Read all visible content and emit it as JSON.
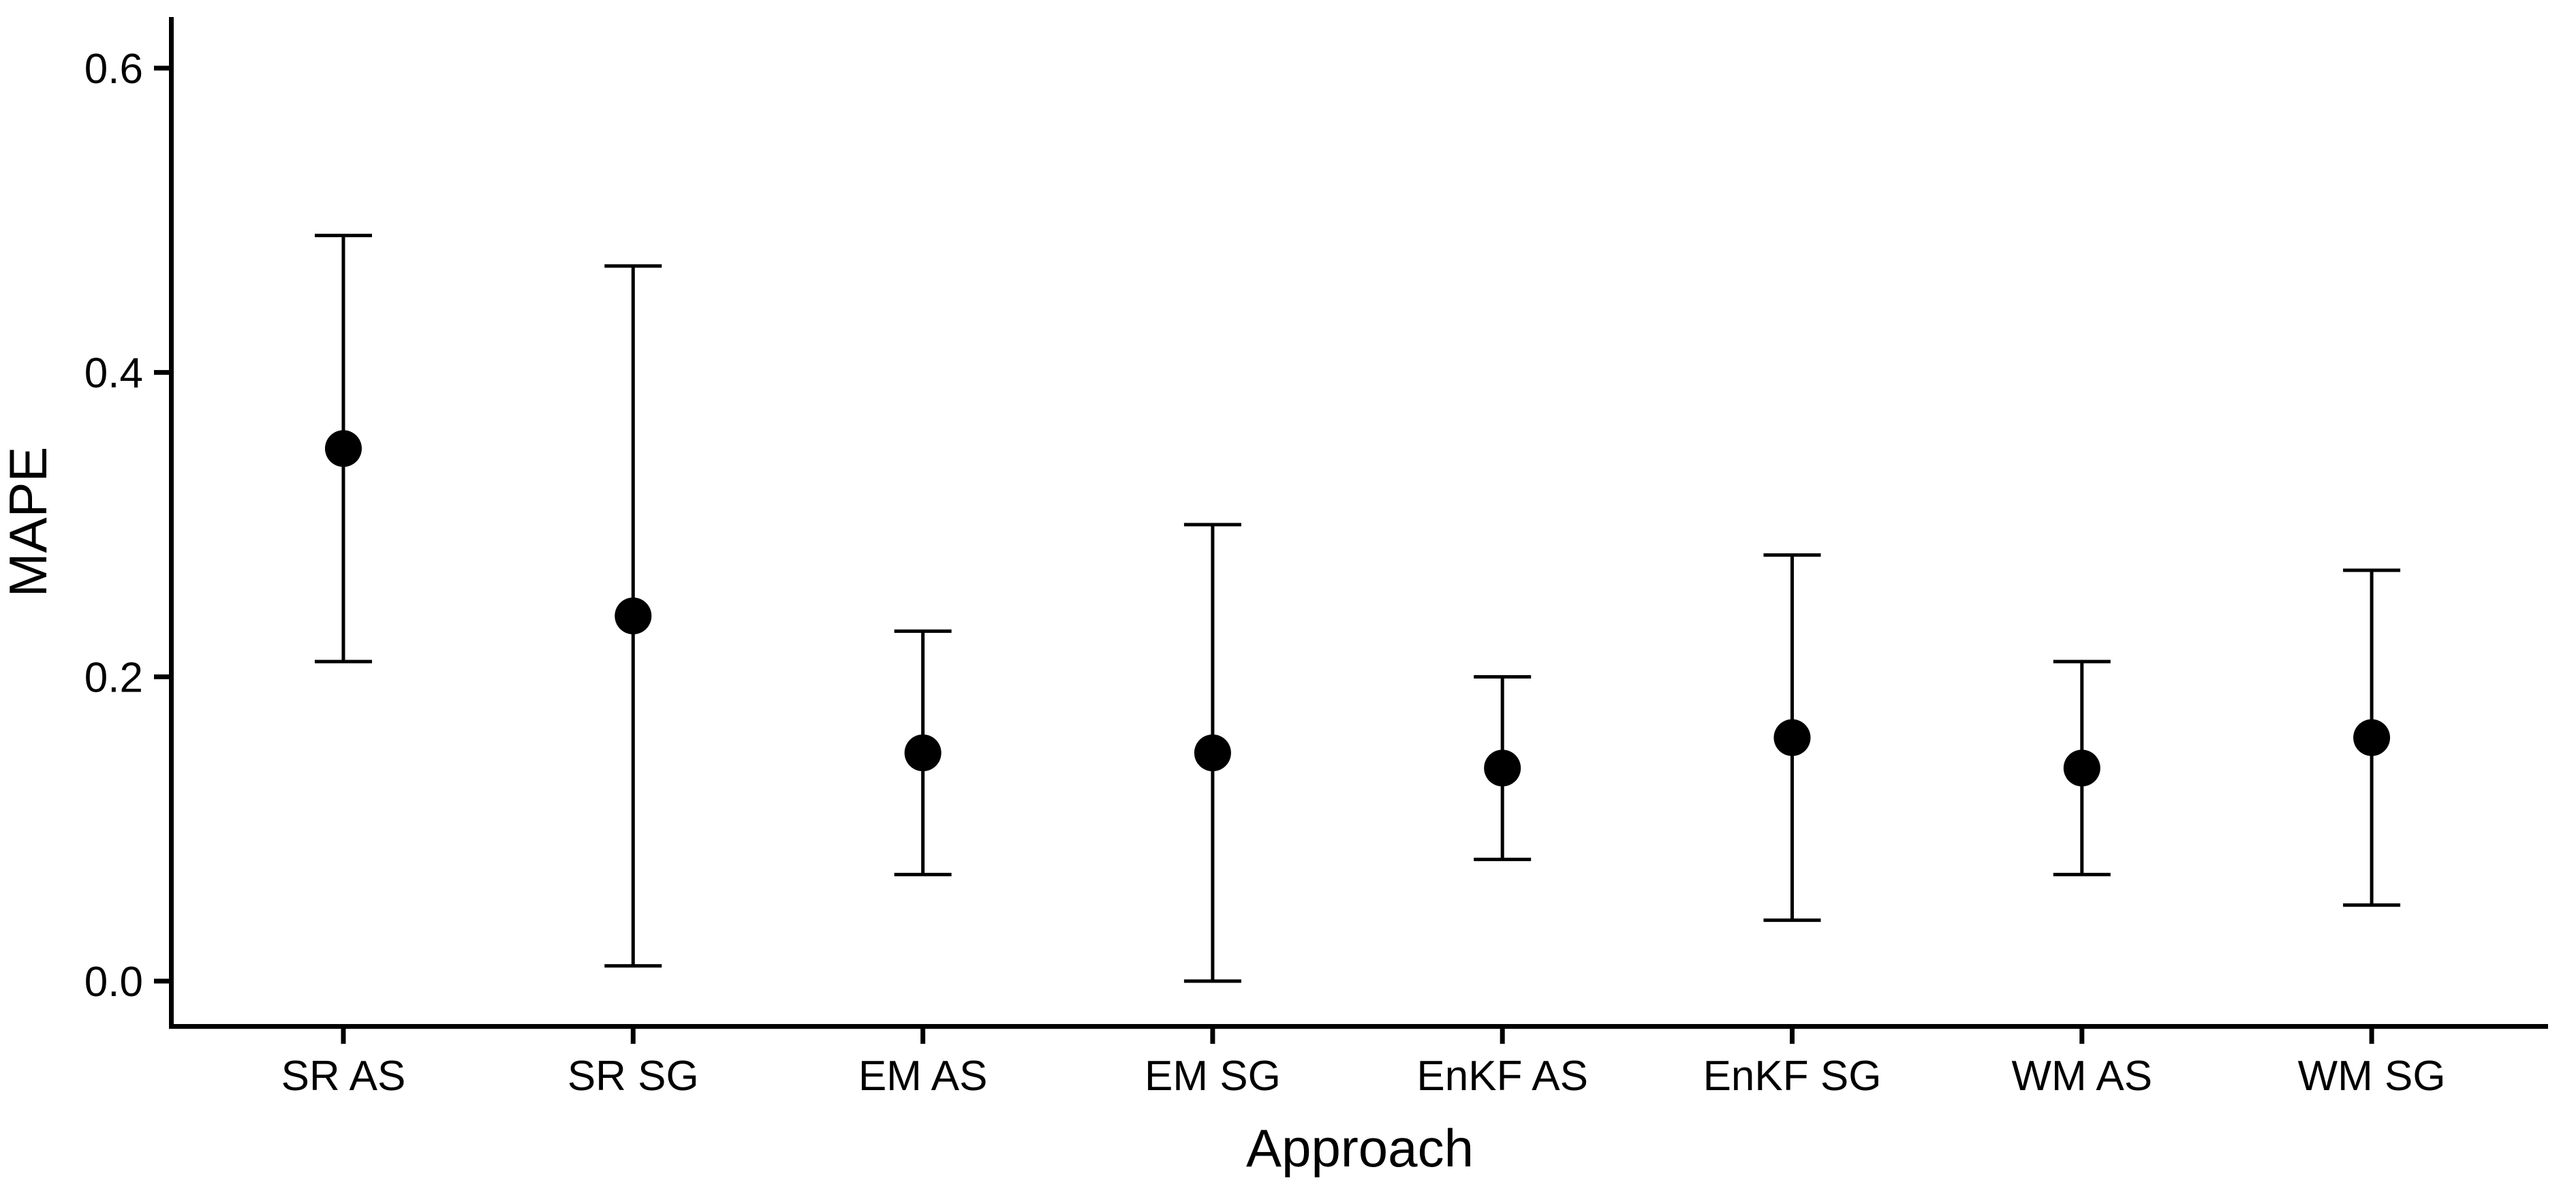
{
  "chart_data": {
    "type": "scatter",
    "subtype": "pointrange-errorbar",
    "title": "",
    "xlabel": "Approach",
    "ylabel": "MAPE",
    "ylim": [
      0.0,
      0.6
    ],
    "grid": false,
    "legend": "none",
    "background_color": "#ffffff",
    "point_color": "#000000",
    "errorbar_color": "#000000",
    "axis_color": "#000000",
    "categories": [
      "SR AS",
      "SR SG",
      "EM AS",
      "EM SG",
      "EnKF AS",
      "EnKF SG",
      "WM AS",
      "WM SG"
    ],
    "points": [
      {
        "category": "SR AS",
        "mean": 0.35,
        "lower": 0.21,
        "upper": 0.49
      },
      {
        "category": "SR SG",
        "mean": 0.24,
        "lower": 0.01,
        "upper": 0.47
      },
      {
        "category": "EM AS",
        "mean": 0.15,
        "lower": 0.07,
        "upper": 0.23
      },
      {
        "category": "EM SG",
        "mean": 0.15,
        "lower": 0.0,
        "upper": 0.3
      },
      {
        "category": "EnKF AS",
        "mean": 0.14,
        "lower": 0.08,
        "upper": 0.2
      },
      {
        "category": "EnKF SG",
        "mean": 0.16,
        "lower": 0.04,
        "upper": 0.28
      },
      {
        "category": "WM AS",
        "mean": 0.14,
        "lower": 0.07,
        "upper": 0.21
      },
      {
        "category": "WM SG",
        "mean": 0.16,
        "lower": 0.05,
        "upper": 0.27
      }
    ],
    "y_ticks": [
      {
        "value": 0.0,
        "label": "0.0"
      },
      {
        "value": 0.2,
        "label": "0.2"
      },
      {
        "value": 0.4,
        "label": "0.4"
      },
      {
        "value": 0.6,
        "label": "0.6"
      }
    ]
  }
}
